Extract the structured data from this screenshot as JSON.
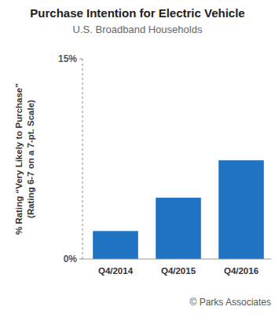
{
  "chart_data": {
    "type": "bar",
    "title": "Purchase Intention for Electric Vehicle",
    "subtitle": "U.S. Broadband Households",
    "y_label": [
      "% Rating “Very Likely to Purchase”",
      "(Rating 6-7 on a 7-pt. Scale)"
    ],
    "categories": [
      "Q4/2014",
      "Q4/2015",
      "Q4/2016"
    ],
    "values": [
      2.1,
      4.6,
      7.4
    ],
    "color": "#1f73c1",
    "ylim": [
      0,
      15
    ],
    "yticks": [
      {
        "value": 0,
        "label": "0%"
      },
      {
        "value": 15,
        "label": "15%"
      }
    ],
    "grid": false,
    "source": "© Parks Associates"
  }
}
